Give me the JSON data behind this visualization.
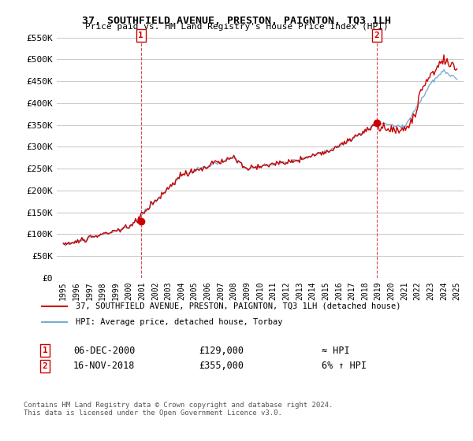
{
  "title": "37, SOUTHFIELD AVENUE, PRESTON, PAIGNTON, TQ3 1LH",
  "subtitle": "Price paid vs. HM Land Registry's House Price Index (HPI)",
  "ylabel_ticks": [
    "£0",
    "£50K",
    "£100K",
    "£150K",
    "£200K",
    "£250K",
    "£300K",
    "£350K",
    "£400K",
    "£450K",
    "£500K",
    "£550K"
  ],
  "ytick_vals": [
    0,
    50000,
    100000,
    150000,
    200000,
    250000,
    300000,
    350000,
    400000,
    450000,
    500000,
    550000
  ],
  "ylim": [
    0,
    570000
  ],
  "x_start_year": 1995,
  "x_end_year": 2025,
  "sale1_year": 2000.92,
  "sale1_price": 129000,
  "sale2_year": 2018.88,
  "sale2_price": 355000,
  "legend_line1": "37, SOUTHFIELD AVENUE, PRESTON, PAIGNTON, TQ3 1LH (detached house)",
  "legend_line2": "HPI: Average price, detached house, Torbay",
  "annotation1_date": "06-DEC-2000",
  "annotation1_price": "£129,000",
  "annotation1_hpi": "≈ HPI",
  "annotation2_date": "16-NOV-2018",
  "annotation2_price": "£355,000",
  "annotation2_hpi": "6% ↑ HPI",
  "footer": "Contains HM Land Registry data © Crown copyright and database right 2024.\nThis data is licensed under the Open Government Licence v3.0.",
  "red_color": "#cc0000",
  "blue_color": "#7aacce",
  "grid_color": "#cccccc",
  "background_color": "#ffffff"
}
